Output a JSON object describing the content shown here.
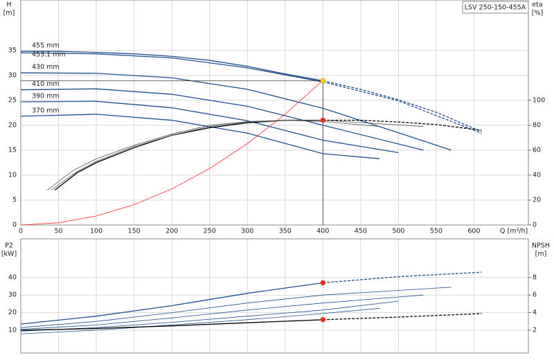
{
  "chart_data": [
    {
      "type": "line",
      "badge": "LSV 250-150-455A",
      "y_label": "H",
      "y_unit": "[m]",
      "y2_label": "eta",
      "y2_unit": "[%]",
      "x_label": "Q [m³/h]",
      "xlim": [
        0,
        672
      ],
      "xticks": [
        0,
        50,
        100,
        150,
        200,
        250,
        300,
        350,
        400,
        450,
        500,
        550,
        600
      ],
      "ylim": [
        0,
        45.1
      ],
      "yticks": [
        0,
        5,
        10,
        15,
        20,
        25,
        30,
        35
      ],
      "y2lim": [
        0,
        180.4
      ],
      "y2ticks": [
        0,
        20,
        40,
        60,
        80,
        100
      ],
      "grid": true,
      "series": [
        {
          "name": "455 mm",
          "color": "#1f4f8f",
          "x": [
            0,
            50,
            100,
            150,
            200,
            250,
            300,
            350,
            400
          ],
          "values": [
            34.8,
            34.8,
            34.6,
            34.3,
            33.8,
            33,
            31.8,
            30.3,
            28.9
          ]
        },
        {
          "color": "#1f4f8f",
          "dashed": true,
          "x": [
            400,
            450,
            500,
            550,
            610
          ],
          "values": [
            28.9,
            27.2,
            25.1,
            22.6,
            18.7
          ]
        },
        {
          "name": "453.1 mm",
          "color": "#1f4f8f",
          "x": [
            0,
            100,
            200,
            300,
            400
          ],
          "values": [
            34.5,
            34.3,
            33.5,
            31.5,
            28.7
          ]
        },
        {
          "color": "#1f4f8f",
          "dashed": true,
          "x": [
            400,
            500,
            610
          ],
          "values": [
            28.7,
            24.9,
            18.4
          ]
        },
        {
          "name": "430 mm",
          "color": "#1f4f8f",
          "x": [
            0,
            100,
            200,
            300,
            400,
            500,
            570
          ],
          "values": [
            30.5,
            30.4,
            29.5,
            27.2,
            23.4,
            18.5,
            15
          ]
        },
        {
          "name": "410 mm",
          "color": "#1f4f8f",
          "x": [
            0,
            100,
            200,
            300,
            400,
            533
          ],
          "values": [
            27.1,
            27.3,
            26.2,
            23.8,
            20,
            15
          ]
        },
        {
          "name": "390 mm",
          "color": "#1f4f8f",
          "x": [
            0,
            100,
            200,
            300,
            400,
            500
          ],
          "values": [
            24.7,
            24.8,
            23.5,
            20.9,
            17,
            14.5
          ]
        },
        {
          "name": "370 mm",
          "color": "#1f4f8f",
          "x": [
            0,
            100,
            200,
            300,
            400,
            475
          ],
          "values": [
            21.8,
            22.2,
            21,
            18.4,
            14.3,
            13.3
          ]
        },
        {
          "color": "#ff2a2a",
          "thin": true,
          "x": [
            0,
            50,
            100,
            150,
            200,
            250,
            300,
            350,
            400
          ],
          "values": [
            0,
            0.45,
            1.81,
            4.08,
            7.25,
            11.33,
            16.31,
            22.2,
            29
          ]
        },
        {
          "color": "#000000",
          "axis": "y2",
          "x": [
            45,
            75,
            100,
            150,
            200,
            250,
            300,
            350,
            400
          ],
          "values": [
            28,
            42,
            50,
            62,
            72,
            78,
            82,
            84,
            84
          ]
        },
        {
          "color": "#000000",
          "axis": "y2",
          "dashed": true,
          "x": [
            400,
            450,
            500,
            550,
            610
          ],
          "values": [
            84,
            84,
            82.6,
            80.5,
            76
          ]
        },
        {
          "color": "#555555",
          "axis": "y2",
          "thin": true,
          "x": [
            40,
            75,
            100,
            150,
            200,
            250,
            300,
            350,
            400,
            533
          ],
          "values": [
            28,
            43,
            51,
            63,
            72,
            79,
            82.5,
            84,
            84,
            79
          ]
        },
        {
          "color": "#555555",
          "axis": "y2",
          "thin": true,
          "x": [
            35,
            70,
            100,
            150,
            200,
            250,
            300,
            350,
            400,
            475
          ],
          "values": [
            28,
            44,
            53,
            64,
            73,
            80,
            83,
            84,
            83,
            79
          ]
        }
      ],
      "points": [
        {
          "x": 400,
          "value": 28.9,
          "color": "#ffd21f",
          "guide": true
        },
        {
          "x": 400,
          "value": 84,
          "axis": "y2",
          "color": "#ff2020"
        }
      ]
    },
    {
      "type": "line",
      "y_label": "P2",
      "y_unit": "[kW]",
      "y2_label": "NPSH",
      "y2_unit": "[m]",
      "xlim": [
        0,
        672
      ],
      "xticks": [
        0,
        50,
        100,
        150,
        200,
        250,
        300,
        350,
        400,
        450,
        500,
        550,
        600
      ],
      "xtick_labels": false,
      "ylim": [
        -3,
        62
      ],
      "yticks": [
        10,
        20,
        30,
        40
      ],
      "y2lim": [
        -0.6,
        12.4
      ],
      "y2ticks": [
        2,
        4,
        6,
        8
      ],
      "grid": true,
      "series": [
        {
          "color": "#1f4f8f",
          "x": [
            0,
            100,
            200,
            300,
            400
          ],
          "values": [
            13.5,
            18,
            24,
            31,
            37
          ]
        },
        {
          "color": "#1f4f8f",
          "dashed": true,
          "x": [
            400,
            500,
            610
          ],
          "values": [
            37,
            40.5,
            43
          ]
        },
        {
          "color": "#1f4f8f",
          "thin": true,
          "x": [
            0,
            100,
            200,
            300,
            400,
            570
          ],
          "values": [
            11.5,
            15,
            20,
            25.5,
            30,
            34.5
          ]
        },
        {
          "color": "#1f4f8f",
          "thin": true,
          "x": [
            0,
            100,
            200,
            300,
            400,
            533
          ],
          "values": [
            10.5,
            13,
            17,
            21.5,
            25.5,
            30
          ]
        },
        {
          "color": "#1f4f8f",
          "thin": true,
          "x": [
            0,
            100,
            200,
            300,
            400,
            500
          ],
          "values": [
            9.5,
            11.5,
            14.5,
            18,
            21.5,
            26.5
          ]
        },
        {
          "color": "#1f4f8f",
          "thin": true,
          "x": [
            0,
            100,
            200,
            300,
            400,
            475
          ],
          "values": [
            8,
            10,
            13,
            16,
            19.5,
            22.5
          ]
        },
        {
          "color": "#000000",
          "axis": "y2",
          "x": [
            0,
            100,
            200,
            300,
            400
          ],
          "values": [
            2,
            2.2,
            2.5,
            2.85,
            3.2
          ]
        },
        {
          "color": "#000000",
          "axis": "y2",
          "dashed": true,
          "x": [
            400,
            500,
            610
          ],
          "values": [
            3.2,
            3.5,
            3.9
          ]
        }
      ],
      "points": [
        {
          "x": 400,
          "value": 37,
          "color": "#ff2020"
        },
        {
          "x": 400,
          "value": 3.2,
          "axis": "y2",
          "color": "#ff2020"
        }
      ]
    }
  ]
}
